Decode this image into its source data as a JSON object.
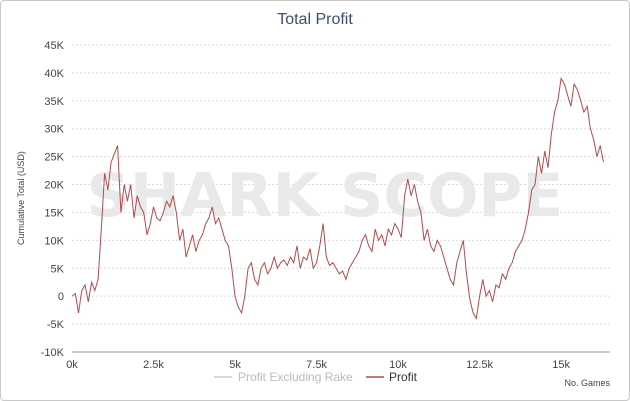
{
  "chart_data": {
    "type": "line",
    "title": "Total Profit",
    "xlabel": "No. Games",
    "ylabel": "Cumulative Total (USD)",
    "xlim": [
      0,
      16500
    ],
    "ylim": [
      -10000,
      45000
    ],
    "x_ticks": [
      0,
      2500,
      5000,
      7500,
      10000,
      12500,
      15000
    ],
    "x_tick_labels": [
      "0k",
      "2.5k",
      "5k",
      "7.5k",
      "10k",
      "12.5k",
      "15k"
    ],
    "y_ticks": [
      -10000,
      -5000,
      0,
      5000,
      10000,
      15000,
      20000,
      25000,
      30000,
      35000,
      40000,
      45000
    ],
    "y_tick_labels": [
      "-10K",
      "-5K",
      "0",
      "5K",
      "10K",
      "15K",
      "20K",
      "25K",
      "30K",
      "35K",
      "40K",
      "45K"
    ],
    "grid": true,
    "legend_position": "bottom-center",
    "watermark": "SHARK SCOPE",
    "colors": {
      "profit": "#b54a4a",
      "excluding_rake": "#cccccc",
      "title": "#3a4f6b",
      "grid": "#dcdcdc"
    },
    "series": [
      {
        "name": "Profit Excluding Rake",
        "visible": false,
        "x": [],
        "y": []
      },
      {
        "name": "Profit",
        "x": [
          0,
          100,
          200,
          300,
          400,
          500,
          600,
          700,
          800,
          900,
          1000,
          1100,
          1200,
          1300,
          1400,
          1500,
          1600,
          1700,
          1800,
          1900,
          2000,
          2100,
          2200,
          2300,
          2400,
          2500,
          2600,
          2700,
          2800,
          2900,
          3000,
          3100,
          3200,
          3300,
          3400,
          3500,
          3600,
          3700,
          3800,
          3900,
          4000,
          4100,
          4200,
          4300,
          4400,
          4500,
          4600,
          4700,
          4800,
          4900,
          5000,
          5100,
          5200,
          5300,
          5400,
          5500,
          5600,
          5700,
          5800,
          5900,
          6000,
          6100,
          6200,
          6300,
          6400,
          6500,
          6600,
          6700,
          6800,
          6900,
          7000,
          7100,
          7200,
          7300,
          7400,
          7500,
          7600,
          7700,
          7800,
          7900,
          8000,
          8100,
          8200,
          8300,
          8400,
          8500,
          8600,
          8700,
          8800,
          8900,
          9000,
          9100,
          9200,
          9300,
          9400,
          9500,
          9600,
          9700,
          9800,
          9900,
          10000,
          10100,
          10200,
          10300,
          10400,
          10500,
          10600,
          10700,
          10800,
          10900,
          11000,
          11100,
          11200,
          11300,
          11400,
          11500,
          11600,
          11700,
          11800,
          11900,
          12000,
          12100,
          12200,
          12300,
          12400,
          12500,
          12600,
          12700,
          12800,
          12900,
          13000,
          13100,
          13200,
          13300,
          13400,
          13500,
          13600,
          13700,
          13800,
          13900,
          14000,
          14100,
          14200,
          14300,
          14400,
          14500,
          14600,
          14700,
          14800,
          14900,
          15000,
          15100,
          15200,
          15300,
          15400,
          15500,
          15600,
          15700,
          15800,
          15900,
          16000,
          16100,
          16200,
          16300
        ],
        "y": [
          0,
          500,
          -3000,
          1000,
          2000,
          -1000,
          2500,
          1000,
          3000,
          12000,
          22000,
          19000,
          24000,
          25500,
          27000,
          15000,
          20000,
          17000,
          20000,
          14000,
          18000,
          16000,
          15000,
          11000,
          13000,
          16000,
          14000,
          13500,
          15000,
          17000,
          16000,
          18000,
          15000,
          10000,
          12000,
          7000,
          9000,
          11000,
          8000,
          10000,
          11000,
          13000,
          14000,
          16000,
          13000,
          14000,
          12000,
          10000,
          9000,
          5000,
          0,
          -2000,
          -3000,
          0,
          5000,
          6000,
          3000,
          2000,
          5000,
          6000,
          4000,
          5000,
          7000,
          5000,
          6000,
          6500,
          5500,
          7000,
          6000,
          9000,
          5000,
          7000,
          6500,
          8500,
          5000,
          6000,
          9000,
          13000,
          7000,
          5500,
          6000,
          5000,
          4000,
          4500,
          3000,
          5000,
          6000,
          7000,
          8000,
          10000,
          11000,
          9000,
          8000,
          12000,
          10000,
          11000,
          9000,
          12000,
          11000,
          13000,
          12000,
          10500,
          18000,
          21000,
          18000,
          20000,
          17000,
          15000,
          10000,
          12000,
          9000,
          8000,
          10000,
          9000,
          7000,
          5000,
          3000,
          2000,
          6000,
          8000,
          10000,
          4000,
          -500,
          -3000,
          -4000,
          0,
          3000,
          0,
          1000,
          -1000,
          2000,
          1500,
          4000,
          3000,
          5000,
          6000,
          8000,
          9000,
          10000,
          12000,
          15000,
          19000,
          20000,
          25000,
          22000,
          26000,
          23000,
          29000,
          33000,
          35000,
          39000,
          38000,
          36000,
          34000,
          38000,
          37000,
          35000,
          33000,
          34000,
          30000,
          28000,
          25000,
          27000,
          24000
        ]
      }
    ]
  }
}
